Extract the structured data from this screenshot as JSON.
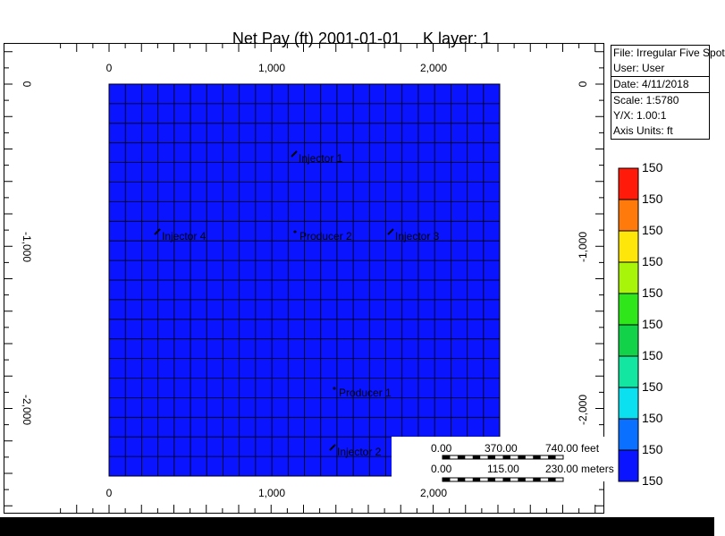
{
  "title": {
    "property": "Net Pay (ft)",
    "date": "2001-01-01",
    "layer": "K layer: 1"
  },
  "info": {
    "file": "File: Irregular Five Spot",
    "user": "User:  User",
    "date": "Date: 4/11/2018",
    "scale": "Scale: 1:5780",
    "yx": "Y/X: 1.00:1",
    "units": "Axis Units: ft"
  },
  "axes": {
    "x_ticks": [
      "0",
      "1,000",
      "2,000"
    ],
    "y_ticks": [
      "0",
      "-1,000",
      "-2,000"
    ]
  },
  "grid": {
    "cols": 24,
    "rows": 20,
    "fill_color": "#0a14ff",
    "line_color": "#000000"
  },
  "wells": [
    {
      "name": "Injector 1",
      "type": "injector"
    },
    {
      "name": "Injector 4",
      "type": "injector"
    },
    {
      "name": "Producer 2",
      "type": "producer"
    },
    {
      "name": "Injector 3",
      "type": "injector"
    },
    {
      "name": "Producer 1",
      "type": "producer"
    },
    {
      "name": "Injector 2",
      "type": "injector"
    }
  ],
  "legend": {
    "labels": [
      "150",
      "150",
      "150",
      "150",
      "150",
      "150",
      "150",
      "150",
      "150",
      "150",
      "150"
    ],
    "colors": [
      "#ff1a0a",
      "#ff7a0a",
      "#ffe60a",
      "#a8f50a",
      "#2ee61a",
      "#12d24a",
      "#12e6a0",
      "#0ae0f0",
      "#0a70ff",
      "#0a14ff"
    ]
  },
  "scalebar": {
    "feet": [
      "0.00",
      "370.00",
      "740.00 feet"
    ],
    "meters": [
      "0.00",
      "115.00",
      "230.00 meters"
    ]
  }
}
